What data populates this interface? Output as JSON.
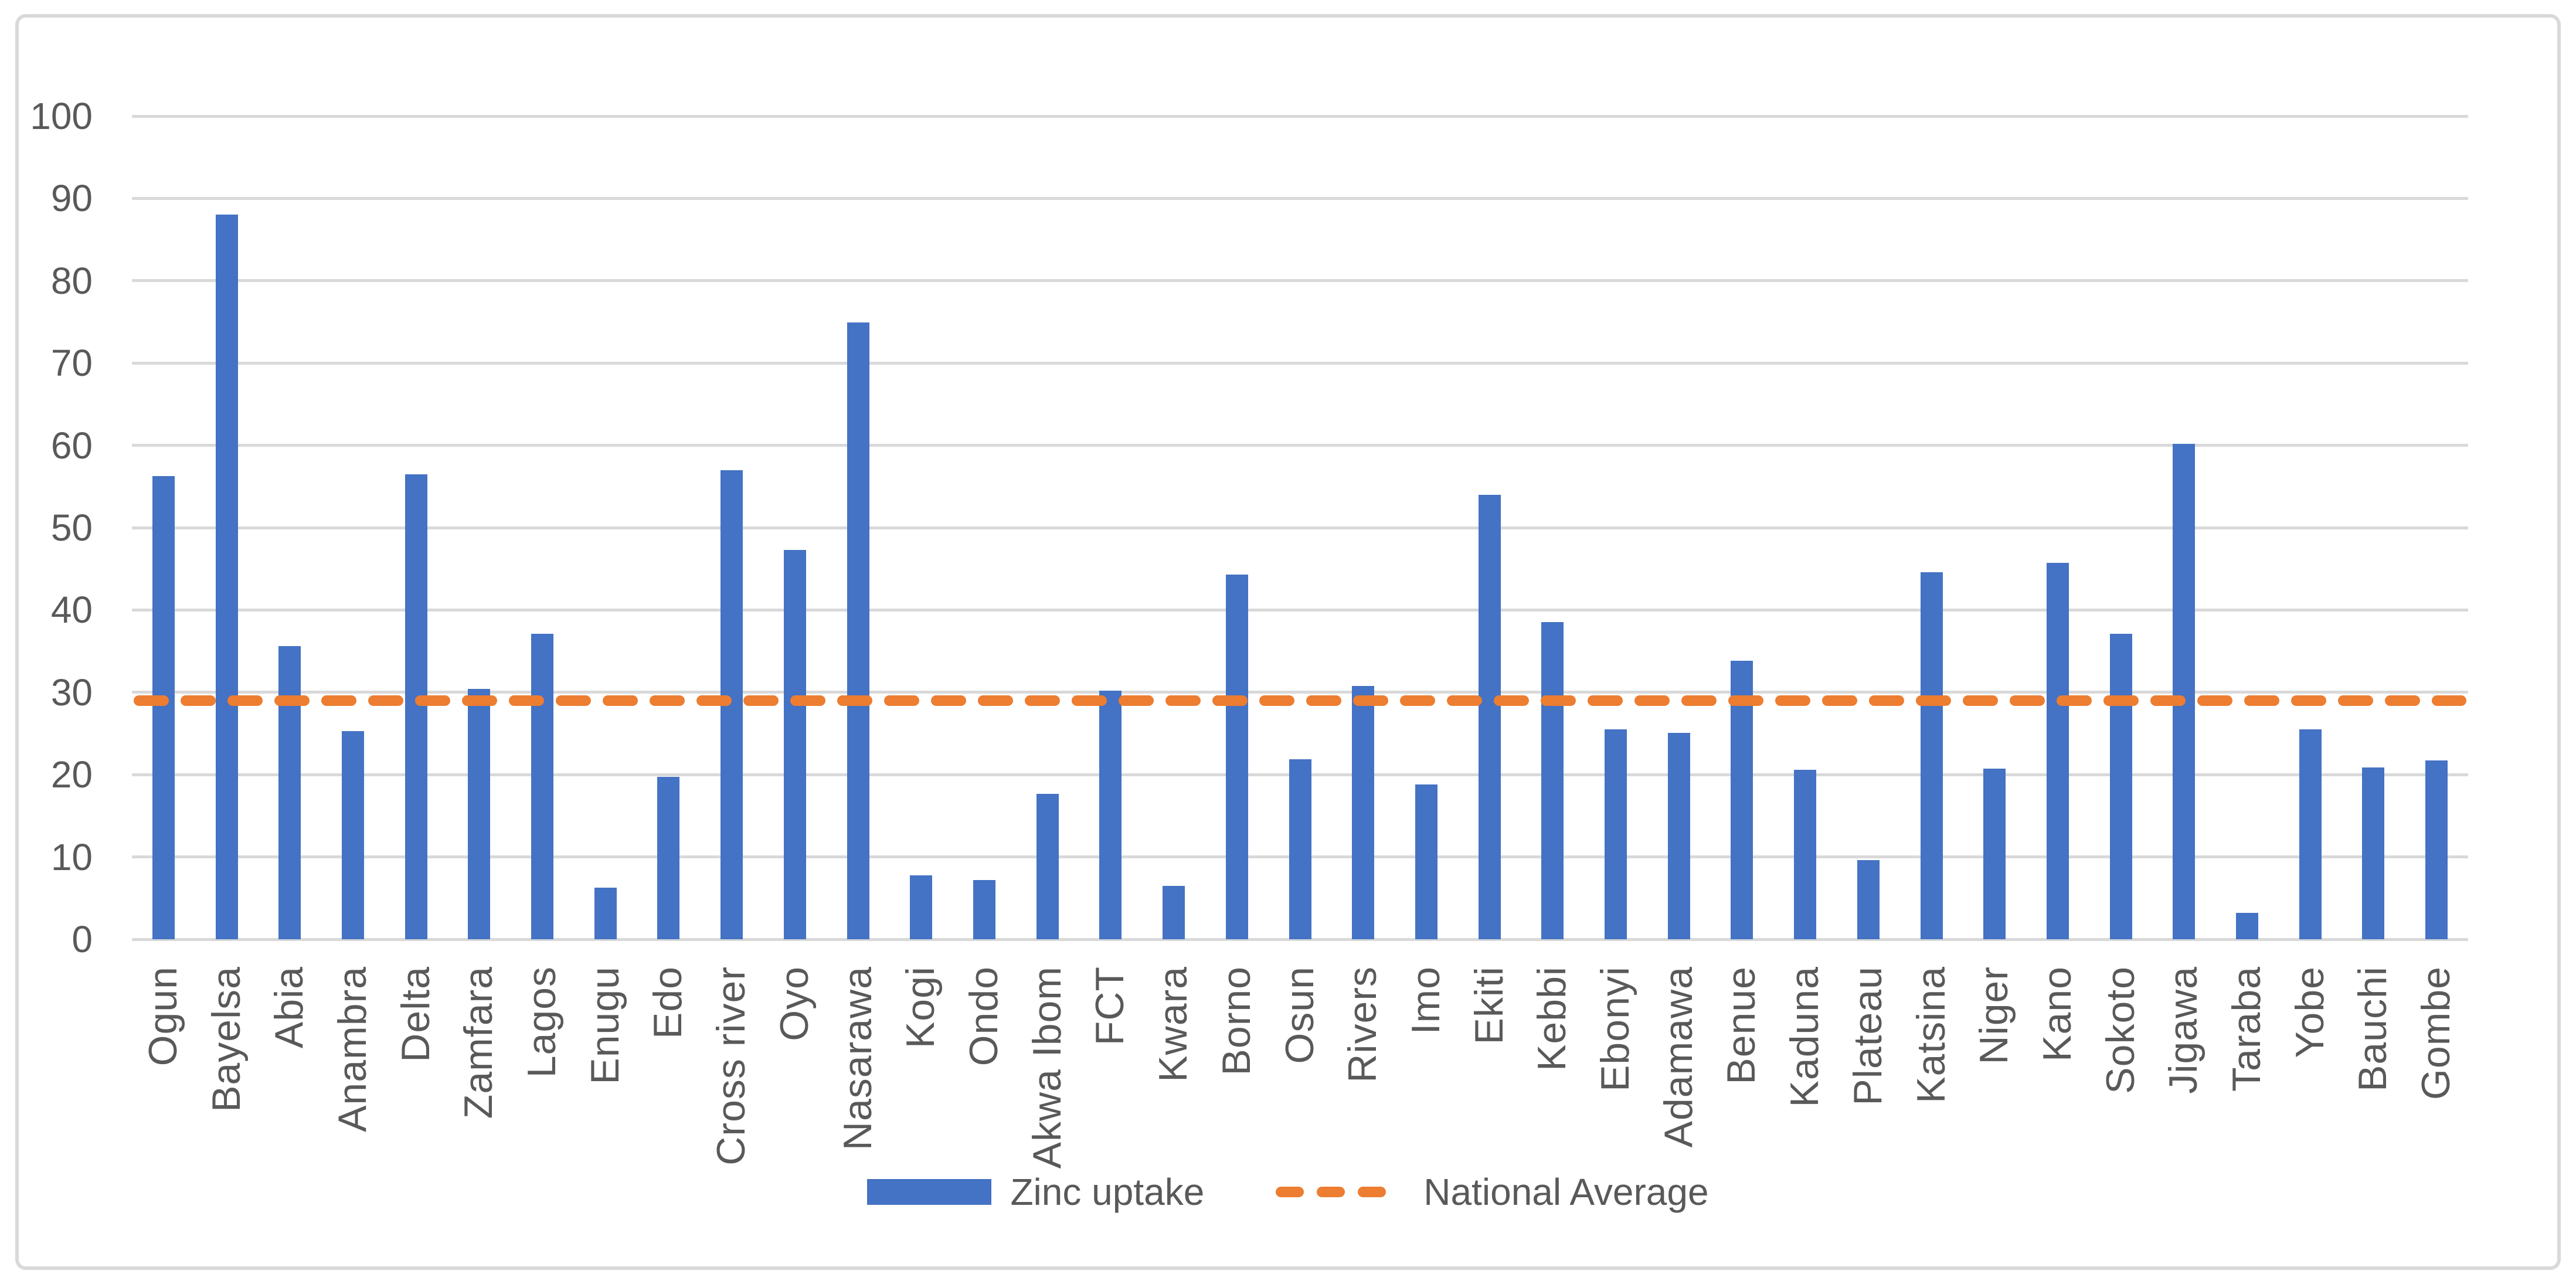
{
  "chart_data": {
    "type": "bar",
    "title": "",
    "xlabel": "",
    "ylabel": "",
    "ylim": [
      0,
      100
    ],
    "y_ticks": [
      0,
      10,
      20,
      30,
      40,
      50,
      60,
      70,
      80,
      90,
      100
    ],
    "grid": true,
    "legend_position": "bottom",
    "categories": [
      "Ogun",
      "Bayelsa",
      "Abia",
      "Anambra",
      "Delta",
      "Zamfara",
      "Lagos",
      "Enugu",
      "Edo",
      "Cross river",
      "Oyo",
      "Nasarawa",
      "Kogi",
      "Ondo",
      "Akwa Ibom",
      "FCT",
      "Kwara",
      "Borno",
      "Osun",
      "Rivers",
      "Imo",
      "Ekiti",
      "Kebbi",
      "Ebonyi",
      "Adamawa",
      "Benue",
      "Kaduna",
      "Plateau",
      "Katsina",
      "Niger",
      "Kano",
      "Sokoto",
      "Jigawa",
      "Taraba",
      "Yobe",
      "Bauchi",
      "Gombe"
    ],
    "series": [
      {
        "name": "Zinc uptake",
        "type": "bar",
        "color": "#4472C4",
        "values": [
          56.3,
          88.0,
          35.6,
          25.3,
          56.5,
          30.4,
          37.1,
          6.3,
          19.7,
          57.0,
          47.3,
          74.9,
          7.8,
          7.2,
          17.7,
          30.2,
          6.5,
          44.3,
          21.9,
          30.8,
          18.8,
          54.0,
          38.5,
          25.5,
          25.1,
          33.8,
          20.6,
          9.6,
          44.6,
          20.7,
          45.7,
          37.1,
          60.2,
          3.2,
          25.5,
          20.9,
          21.7
        ]
      },
      {
        "name": "National Average",
        "type": "line",
        "style": "dashed",
        "color": "#ED7D31",
        "value": 29
      }
    ]
  },
  "colors": {
    "bar": "#4472C4",
    "average_line": "#ED7D31",
    "gridline": "#D9D9D9",
    "frame_border": "#D9D9D9",
    "label_text": "#595959",
    "background": "#ffffff"
  }
}
